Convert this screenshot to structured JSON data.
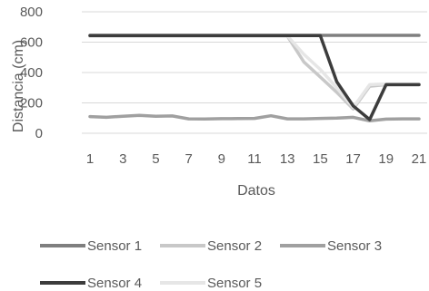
{
  "chart_data": {
    "type": "line",
    "xlabel": "Datos",
    "ylabel": "Distancia (cm)",
    "x": [
      1,
      2,
      3,
      4,
      5,
      6,
      7,
      8,
      9,
      10,
      11,
      12,
      13,
      14,
      15,
      16,
      17,
      18,
      19,
      20,
      21
    ],
    "x_tick_labels": [
      "1",
      "3",
      "5",
      "7",
      "9",
      "11",
      "13",
      "15",
      "17",
      "19",
      "21"
    ],
    "ylim": [
      0,
      800
    ],
    "y_ticks": [
      0,
      200,
      400,
      600,
      800
    ],
    "grid": "horizontal",
    "legend_position": "bottom",
    "series": [
      {
        "name": "Sensor 1",
        "color": "#7f7f7f",
        "values": [
          645,
          645,
          645,
          645,
          645,
          645,
          645,
          645,
          645,
          645,
          645,
          645,
          645,
          645,
          645,
          645,
          645,
          645,
          645,
          645,
          645
        ]
      },
      {
        "name": "Sensor 2",
        "color": "#c8c8c8",
        "values": [
          640,
          640,
          640,
          640,
          640,
          640,
          640,
          640,
          640,
          640,
          640,
          640,
          640,
          470,
          370,
          270,
          160,
          310,
          320,
          320,
          320
        ]
      },
      {
        "name": "Sensor 3",
        "color": "#a0a0a0",
        "values": [
          110,
          105,
          112,
          118,
          112,
          114,
          95,
          94,
          96,
          97,
          98,
          115,
          95,
          95,
          98,
          100,
          105,
          82,
          93,
          95,
          95
        ]
      },
      {
        "name": "Sensor 4",
        "color": "#3c3c3c",
        "values": [
          643,
          643,
          643,
          643,
          643,
          643,
          643,
          643,
          643,
          643,
          643,
          643,
          643,
          643,
          643,
          340,
          180,
          90,
          320,
          320,
          320
        ]
      },
      {
        "name": "Sensor 5",
        "color": "#e6e6e6",
        "values": [
          642,
          642,
          642,
          642,
          642,
          642,
          642,
          642,
          642,
          642,
          642,
          642,
          642,
          520,
          420,
          300,
          170,
          320,
          325,
          325,
          325
        ]
      }
    ]
  }
}
